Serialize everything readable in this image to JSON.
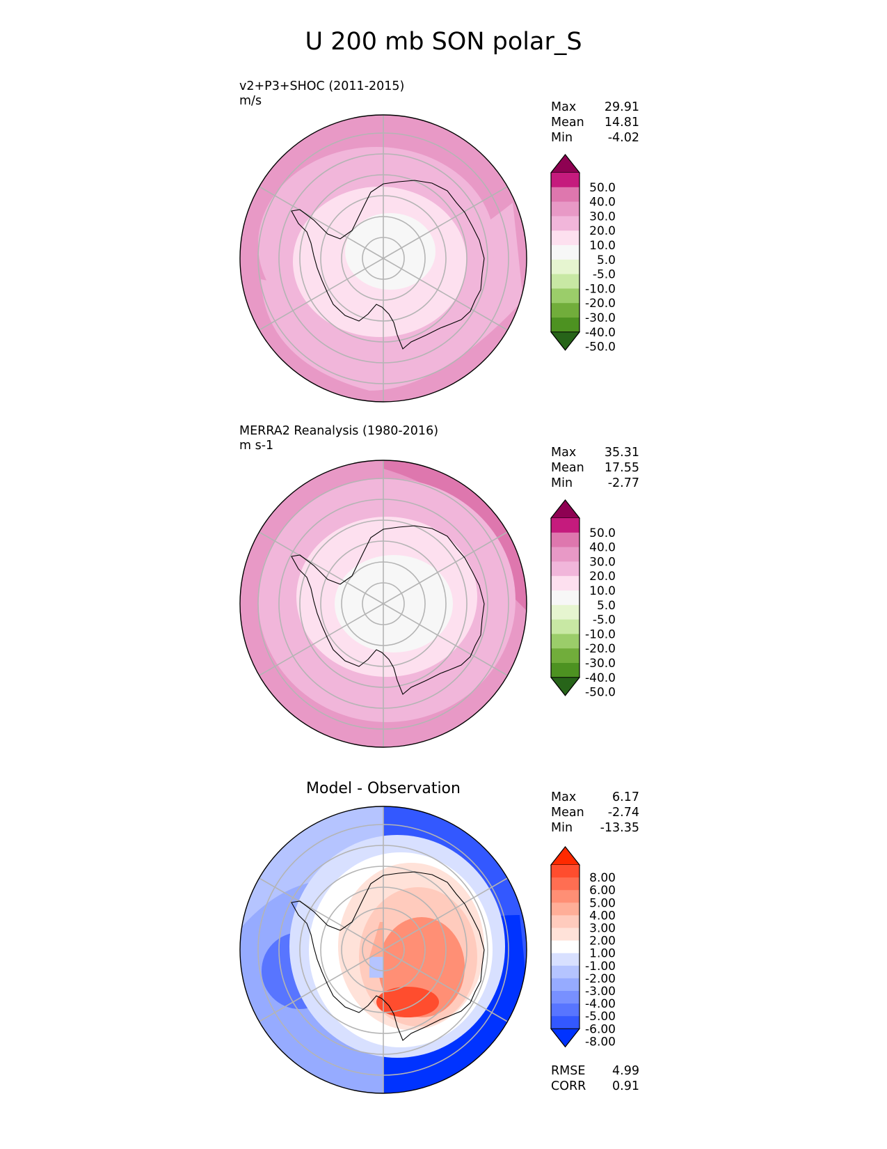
{
  "figure_title": "U 200 mb SON polar_S",
  "chart_data": [
    {
      "type": "heatmap",
      "projection": "south polar stereographic",
      "title": "v2+P3+SHOC (2011-2015)",
      "units": "m/s",
      "stats": {
        "max_label": "Max",
        "max": "29.91",
        "mean_label": "Mean",
        "mean": "14.81",
        "min_label": "Min",
        "min": "-4.02"
      },
      "colorbar": {
        "levels": [
          "50.0",
          "40.0",
          "30.0",
          "20.0",
          "10.0",
          "5.0",
          "-5.0",
          "-10.0",
          "-20.0",
          "-30.0",
          "-40.0",
          "-50.0"
        ],
        "colors": [
          "#8e0152",
          "#c51b7d",
          "#de77ae",
          "#e899c6",
          "#f1b6da",
          "#fde0ef",
          "#f7f7f7",
          "#e6f5d0",
          "#c8e8a4",
          "#9bcd6a",
          "#71ad3b",
          "#4d9221",
          "#276419"
        ]
      }
    },
    {
      "type": "heatmap",
      "projection": "south polar stereographic",
      "title": "MERRA2 Reanalysis (1980-2016)",
      "units": "m s-1",
      "stats": {
        "max_label": "Max",
        "max": "35.31",
        "mean_label": "Mean",
        "mean": "17.55",
        "min_label": "Min",
        "min": "-2.77"
      },
      "colorbar": {
        "levels": [
          "50.0",
          "40.0",
          "30.0",
          "20.0",
          "10.0",
          "5.0",
          "-5.0",
          "-10.0",
          "-20.0",
          "-30.0",
          "-40.0",
          "-50.0"
        ],
        "colors": [
          "#8e0152",
          "#c51b7d",
          "#de77ae",
          "#e899c6",
          "#f1b6da",
          "#fde0ef",
          "#f7f7f7",
          "#e6f5d0",
          "#c8e8a4",
          "#9bcd6a",
          "#71ad3b",
          "#4d9221",
          "#276419"
        ]
      }
    },
    {
      "type": "heatmap",
      "projection": "south polar stereographic",
      "title": "Model - Observation",
      "stats": {
        "max_label": "Max",
        "max": "6.17",
        "mean_label": "Mean",
        "mean": "-2.74",
        "min_label": "Min",
        "min": "-13.35"
      },
      "metrics": {
        "rmse_label": "RMSE",
        "rmse": "4.99",
        "corr_label": "CORR",
        "corr": "0.91"
      },
      "colorbar": {
        "levels": [
          "8.00",
          "6.00",
          "5.00",
          "4.00",
          "3.00",
          "2.00",
          "1.00",
          "-1.00",
          "-2.00",
          "-3.00",
          "-4.00",
          "-5.00",
          "-6.00",
          "-8.00"
        ],
        "colors": [
          "#ff2a00",
          "#ff4d2e",
          "#ff6e52",
          "#ff8f75",
          "#ffae98",
          "#ffcbbd",
          "#ffe2d9",
          "#ffffff",
          "#d8e0ff",
          "#b5c4ff",
          "#96abff",
          "#7890ff",
          "#5875ff",
          "#3358ff",
          "#0033ff"
        ]
      }
    }
  ]
}
